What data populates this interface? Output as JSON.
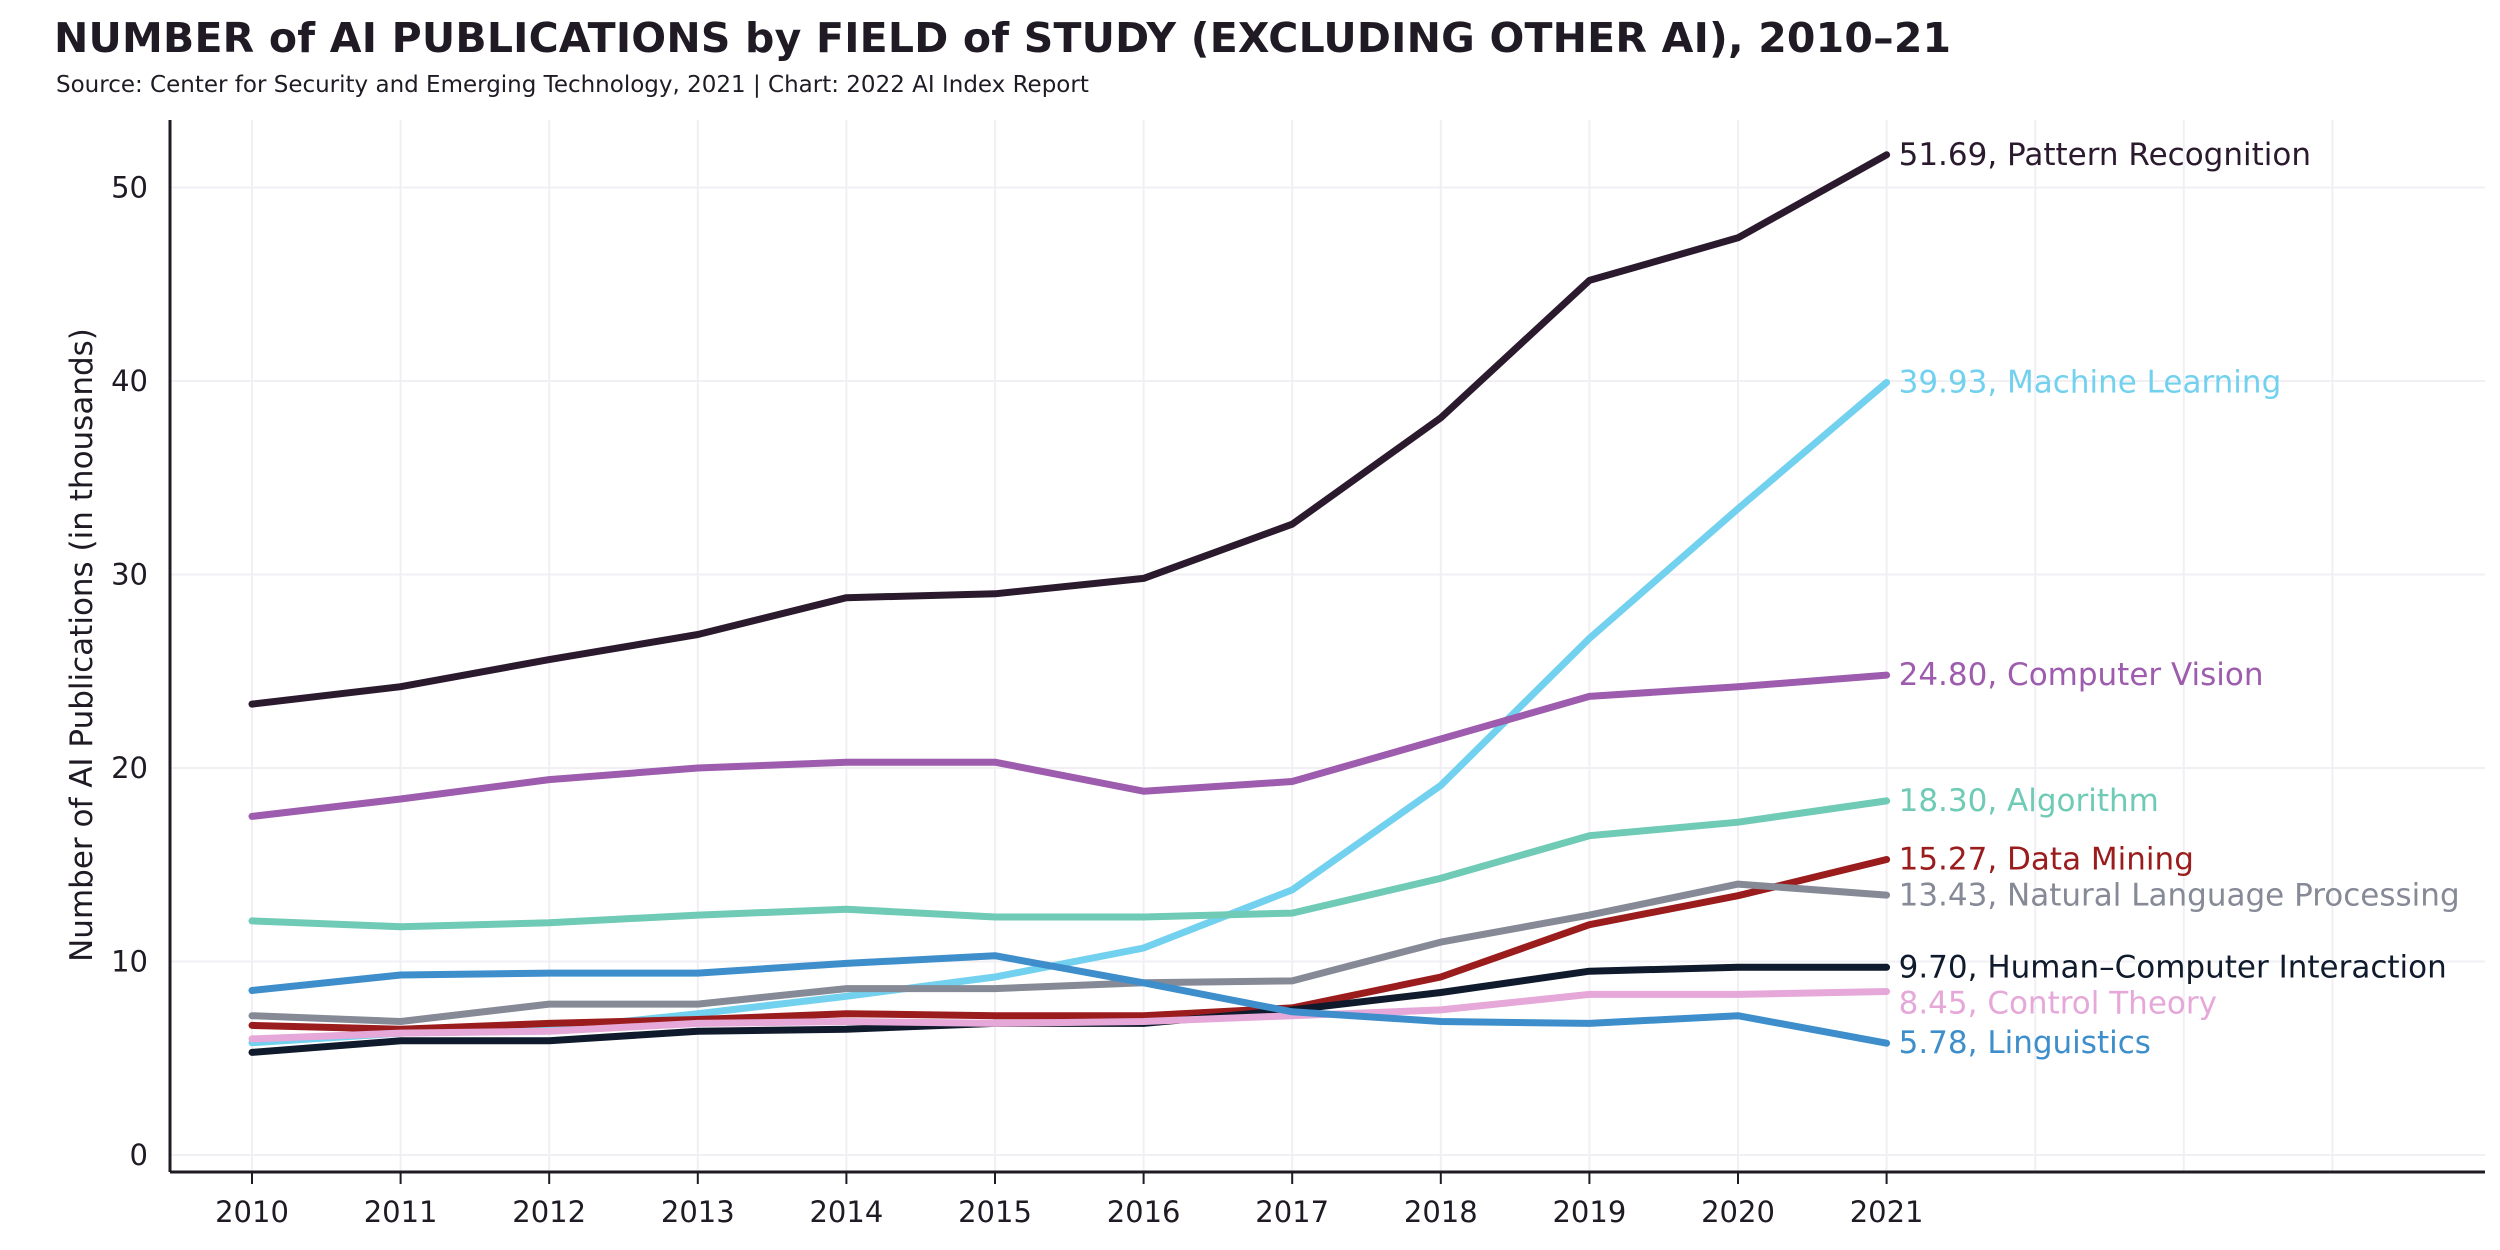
{
  "title": "NUMBER of AI PUBLICATIONS by FIELD of STUDY (EXCLUDING OTHER AI), 2010–21",
  "source": "Source: Center for Security and Emerging Technology, 2021 | Chart: 2022 AI Index Report",
  "chart_data": {
    "type": "line",
    "title": "NUMBER of AI PUBLICATIONS by FIELD of STUDY (EXCLUDING OTHER AI), 2010–21",
    "xlabel": "",
    "ylabel": "Number of AI Publications (in thousands)",
    "ylim": [
      0,
      55
    ],
    "yticks": [
      0,
      10,
      20,
      30,
      40,
      50
    ],
    "x": [
      "2010",
      "2011",
      "2012",
      "2013",
      "2014",
      "2015",
      "2016",
      "2017",
      "2018",
      "2019",
      "2020",
      "2021"
    ],
    "grid": true,
    "legend": "end-of-line labels",
    "series": [
      {
        "name": "Pattern Recognition",
        "color": "#2b1a2e",
        "end_label": "51.69, Pattern Recognition",
        "values": [
          23.3,
          24.2,
          25.6,
          26.9,
          28.8,
          29.0,
          29.8,
          32.6,
          38.1,
          45.2,
          47.4,
          51.69
        ]
      },
      {
        "name": "Machine Learning",
        "color": "#72d1ee",
        "end_label": "39.93, Machine Learning",
        "values": [
          5.8,
          6.3,
          6.5,
          7.3,
          8.2,
          9.2,
          10.7,
          13.7,
          19.1,
          26.7,
          33.4,
          39.93
        ]
      },
      {
        "name": "Computer Vision",
        "color": "#9d5cad",
        "end_label": "24.80, Computer Vision",
        "values": [
          17.5,
          18.4,
          19.4,
          20.0,
          20.3,
          20.3,
          18.8,
          19.3,
          21.5,
          23.7,
          24.2,
          24.8
        ]
      },
      {
        "name": "Algorithm",
        "color": "#6fcab6",
        "end_label": "18.30, Algorithm",
        "values": [
          12.1,
          11.8,
          12.0,
          12.4,
          12.7,
          12.3,
          12.3,
          12.5,
          14.3,
          16.5,
          17.2,
          18.3
        ]
      },
      {
        "name": "Data Mining",
        "color": "#9b1c1c",
        "end_label": "15.27, Data Mining",
        "values": [
          6.7,
          6.5,
          6.8,
          7.0,
          7.3,
          7.2,
          7.2,
          7.6,
          9.2,
          11.9,
          13.4,
          15.27
        ]
      },
      {
        "name": "Natural Language Processing",
        "color": "#858a96",
        "end_label": "13.43, Natural Language Processing",
        "values": [
          7.2,
          6.9,
          7.8,
          7.8,
          8.6,
          8.6,
          8.9,
          9.0,
          11.0,
          12.4,
          14.0,
          13.43
        ]
      },
      {
        "name": "Human–Computer Interaction",
        "color": "#0f1a2c",
        "end_label": "9.70, Human–Computer Interaction",
        "values": [
          5.3,
          5.9,
          5.9,
          6.4,
          6.5,
          6.8,
          6.8,
          7.5,
          8.4,
          9.5,
          9.7,
          9.7
        ]
      },
      {
        "name": "Control Theory",
        "color": "#e5a8d8",
        "end_label": "8.45, Control Theory",
        "values": [
          6.0,
          6.3,
          6.4,
          6.8,
          6.9,
          6.8,
          6.9,
          7.2,
          7.5,
          8.3,
          8.3,
          8.45
        ]
      },
      {
        "name": "Linguistics",
        "color": "#3d8ecb",
        "end_label": "5.78, Linguistics",
        "values": [
          8.5,
          9.3,
          9.4,
          9.4,
          9.9,
          10.3,
          8.9,
          7.4,
          6.9,
          6.8,
          7.2,
          5.78
        ]
      }
    ]
  }
}
